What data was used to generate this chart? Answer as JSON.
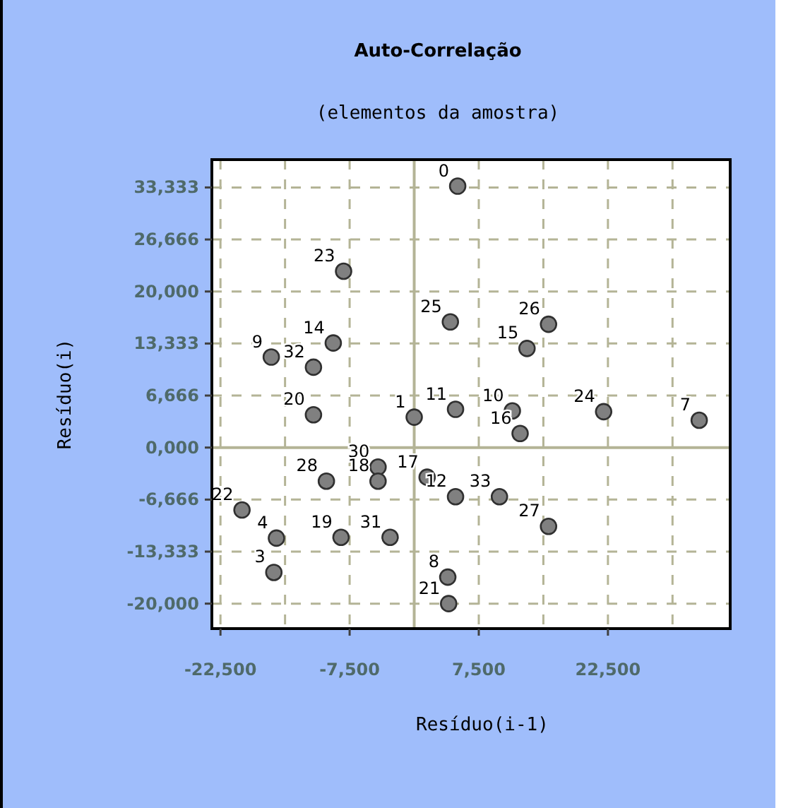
{
  "chart_data": {
    "type": "scatter",
    "title": "Auto-Correlação",
    "subtitle": "(elementos da amostra)",
    "xlabel": "Resíduo(i-1)",
    "ylabel": "Resíduo(i)",
    "x": [
      5050,
      -8200,
      -9400,
      -16600,
      -11700,
      -11700,
      4200,
      0,
      4800,
      15600,
      13100,
      11400,
      12300,
      22000,
      33100,
      -4200,
      -4200,
      -10200,
      1500,
      4800,
      9900,
      15600,
      -20000,
      -16000,
      -16300,
      -8500,
      -2800,
      3900,
      4000
    ],
    "series": [
      {
        "color": "#808080",
        "values": [
          33500,
          22600,
          13400,
          11600,
          10300,
          4200,
          16100,
          3900,
          4900,
          15800,
          12700,
          4700,
          1800,
          4600,
          3500,
          -2500,
          -4300,
          -4300,
          -3800,
          -6300,
          -6300,
          -10100,
          -8000,
          -11600,
          -16000,
          -11500,
          -11500,
          -16600,
          -20000
        ]
      }
    ],
    "annotations": [
      {
        "text": "0",
        "x": 5050,
        "y": 33500
      },
      {
        "text": "23",
        "x": -8200,
        "y": 22600
      },
      {
        "text": "14",
        "x": -9400,
        "y": 13400
      },
      {
        "text": "9",
        "x": -16600,
        "y": 11600
      },
      {
        "text": "32",
        "x": -11700,
        "y": 10300
      },
      {
        "text": "20",
        "x": -11700,
        "y": 4200
      },
      {
        "text": "25",
        "x": 4200,
        "y": 16100
      },
      {
        "text": "1",
        "x": 0,
        "y": 3900
      },
      {
        "text": "11",
        "x": 4800,
        "y": 4900
      },
      {
        "text": "26",
        "x": 15600,
        "y": 15800
      },
      {
        "text": "15",
        "x": 13100,
        "y": 12700
      },
      {
        "text": "10",
        "x": 11400,
        "y": 4700
      },
      {
        "text": "16",
        "x": 12300,
        "y": 1800
      },
      {
        "text": "24",
        "x": 22000,
        "y": 4600
      },
      {
        "text": "7",
        "x": 33100,
        "y": 3500
      },
      {
        "text": "30",
        "x": -4200,
        "y": -2500
      },
      {
        "text": "18",
        "x": -4200,
        "y": -4300
      },
      {
        "text": "28",
        "x": -10200,
        "y": -4300
      },
      {
        "text": "17",
        "x": 1500,
        "y": -3800
      },
      {
        "text": "12",
        "x": 4800,
        "y": -6300
      },
      {
        "text": "33",
        "x": 9900,
        "y": -6300
      },
      {
        "text": "27",
        "x": 15600,
        "y": -10100
      },
      {
        "text": "22",
        "x": -20000,
        "y": -8000
      },
      {
        "text": "4",
        "x": -16000,
        "y": -11600
      },
      {
        "text": "3",
        "x": -16300,
        "y": -16000
      },
      {
        "text": "19",
        "x": -8500,
        "y": -11500
      },
      {
        "text": "31",
        "x": -2800,
        "y": -11500
      },
      {
        "text": "8",
        "x": 3900,
        "y": -16600
      },
      {
        "text": "21",
        "x": 4000,
        "y": -20000
      }
    ],
    "xlim": [
      -23500,
      36700
    ],
    "ylim": [
      -23200,
      36900
    ],
    "xticks": [
      {
        "value": -22500,
        "label": "-22,500"
      },
      {
        "value": -15000,
        "label": null
      },
      {
        "value": -7500,
        "label": "-7,500"
      },
      {
        "value": 0,
        "label": null
      },
      {
        "value": 7500,
        "label": "7,500"
      },
      {
        "value": 15000,
        "label": null
      },
      {
        "value": 22500,
        "label": "22,500"
      },
      {
        "value": 30000,
        "label": null
      }
    ],
    "yticks": [
      {
        "value": -20000,
        "label": "-20,000"
      },
      {
        "value": -13333,
        "label": "-13,333"
      },
      {
        "value": -6666,
        "label": "-6,666"
      },
      {
        "value": 0,
        "label": "0,000"
      },
      {
        "value": 6666,
        "label": "6,666"
      },
      {
        "value": 13333,
        "label": "13,333"
      },
      {
        "value": 20000,
        "label": "20,000"
      },
      {
        "value": 26666,
        "label": "26,666"
      },
      {
        "value": 33333,
        "label": "33,333"
      }
    ],
    "grid": true,
    "marker": "circle"
  }
}
